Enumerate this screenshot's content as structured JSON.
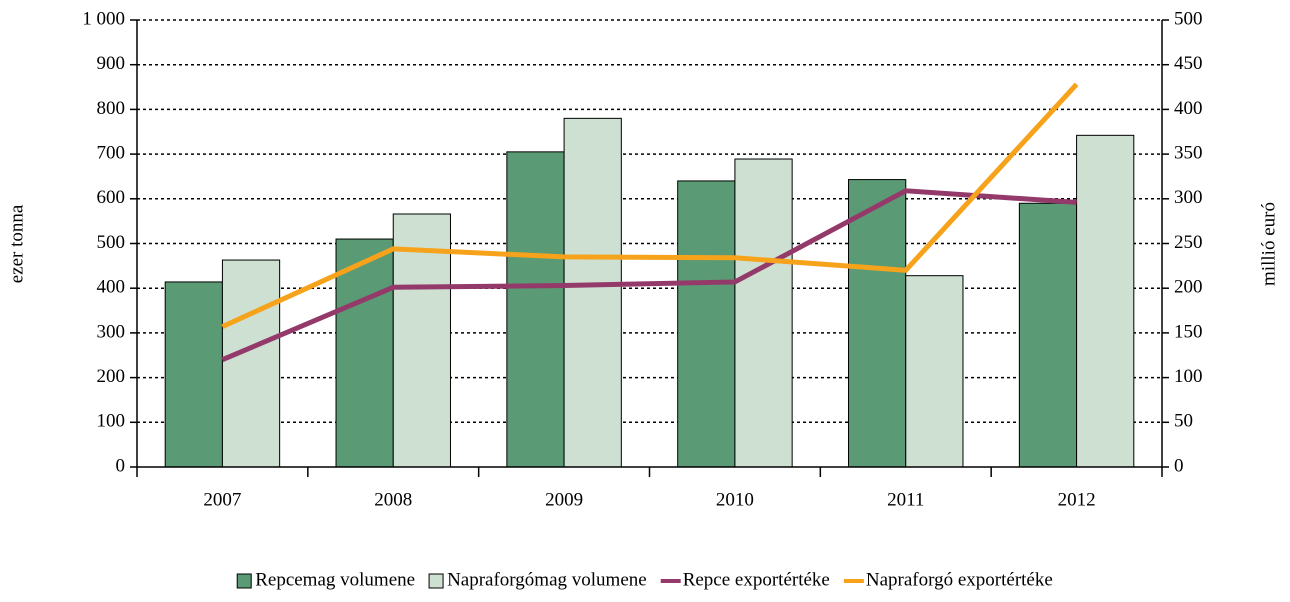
{
  "chart_data": {
    "type": "bar",
    "categories": [
      "2007",
      "2008",
      "2009",
      "2010",
      "2011",
      "2012"
    ],
    "y_label": "ezer tonna",
    "y2_label": "millió euró",
    "ylim": [
      0,
      1000
    ],
    "yticks": [
      0,
      100,
      200,
      300,
      400,
      500,
      600,
      700,
      800,
      900,
      {
        "value": 1000,
        "label": "1 000"
      }
    ],
    "y2lim": [
      0,
      500
    ],
    "y2ticks": [
      0,
      50,
      100,
      150,
      200,
      250,
      300,
      350,
      400,
      450,
      500
    ],
    "grid": true,
    "legend": "bottom",
    "series": [
      {
        "name": "Repcemag volumene",
        "type": "bar",
        "color": "#5a9a74",
        "values": [
          414,
          510,
          705,
          640,
          643,
          590
        ]
      },
      {
        "name": "Napraforgómag volumene",
        "type": "bar",
        "color": "#cde0d2",
        "values": [
          463,
          566,
          780,
          689,
          428,
          742
        ]
      },
      {
        "name": "Repce exportértéke",
        "type": "line",
        "axis": "y2",
        "color": "#943a6b",
        "values": [
          120,
          201,
          203,
          207,
          309,
          296
        ]
      },
      {
        "name": "Napraforgó exportértéke",
        "type": "line",
        "axis": "y2",
        "color": "#f7a21b",
        "values": [
          157,
          244,
          235,
          234,
          220,
          428
        ]
      }
    ]
  }
}
